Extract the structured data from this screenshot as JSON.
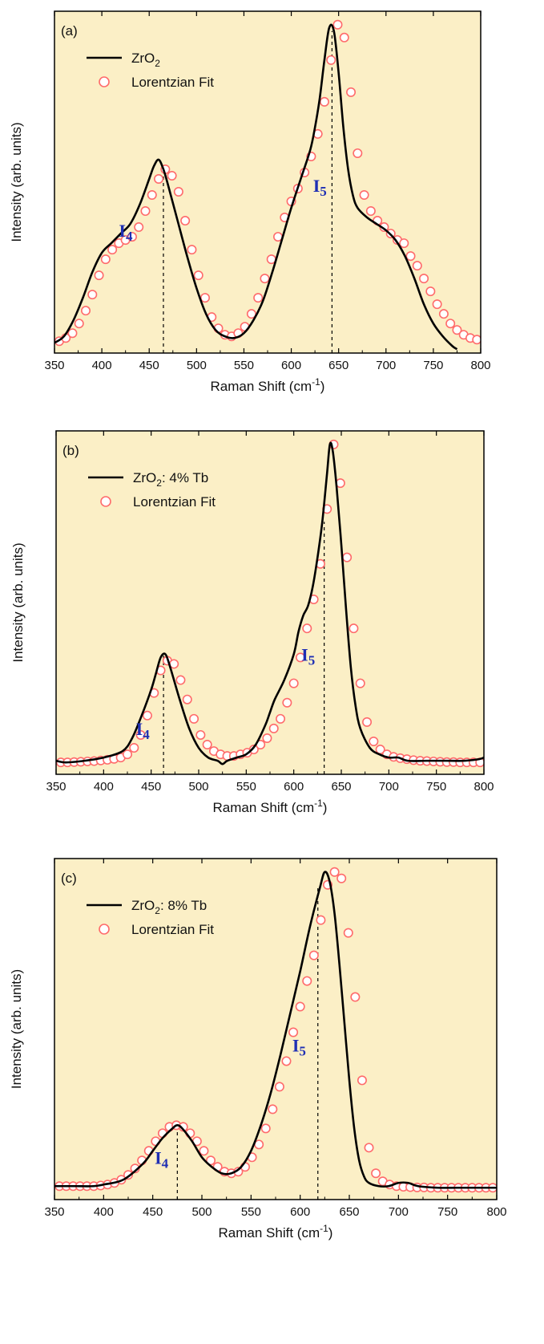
{
  "chart_data": [
    {
      "type": "line",
      "panel_label": "(a)",
      "xlabel_main": "Raman Shift (cm",
      "xlabel_sup": "-1",
      "xlabel_tail": ")",
      "ylabel": "Intensity (arb. units)",
      "xlim": [
        350,
        800
      ],
      "ylim": [
        0,
        1
      ],
      "y_ticks_shown": false,
      "x_ticks": [
        350,
        400,
        450,
        500,
        550,
        600,
        650,
        700,
        750,
        800
      ],
      "x_tick_labels": [
        "350",
        "400",
        "450",
        "500",
        "550",
        "600",
        "650",
        "700",
        "750",
        "800"
      ],
      "background_color": "#fbefc6",
      "legend_placement": "top-left",
      "legend": [
        {
          "name_main": "ZrO",
          "name_sub": "2",
          "name_tail": "",
          "style": "line",
          "color": "#000000"
        },
        {
          "name_main": "Lorentzian Fit",
          "name_sub": "",
          "name_tail": "",
          "style": "circle",
          "color": "#ff6b6b"
        }
      ],
      "peaks": [
        {
          "label_main": "I",
          "label_sub": "4",
          "x": 465,
          "label_x": 418,
          "label_y": 0.33
        },
        {
          "label_main": "I",
          "label_sub": "5",
          "x": 643,
          "label_x": 623,
          "label_y": 0.47
        }
      ],
      "series": [
        {
          "name": "ZrO2",
          "style": "line",
          "x": [
            350,
            360,
            370,
            380,
            390,
            400,
            410,
            420,
            430,
            440,
            450,
            455,
            460,
            465,
            470,
            480,
            490,
            500,
            510,
            520,
            530,
            540,
            550,
            560,
            570,
            580,
            590,
            600,
            610,
            620,
            625,
            630,
            635,
            640,
            645,
            650,
            655,
            660,
            665,
            670,
            680,
            690,
            700,
            710,
            720,
            730,
            740,
            750,
            760,
            770,
            775
          ],
          "y": [
            0.0,
            0.02,
            0.07,
            0.14,
            0.22,
            0.28,
            0.31,
            0.34,
            0.37,
            0.43,
            0.51,
            0.55,
            0.57,
            0.54,
            0.49,
            0.38,
            0.27,
            0.17,
            0.09,
            0.04,
            0.02,
            0.015,
            0.03,
            0.07,
            0.13,
            0.22,
            0.32,
            0.42,
            0.51,
            0.6,
            0.67,
            0.76,
            0.88,
            0.98,
            0.97,
            0.84,
            0.67,
            0.54,
            0.46,
            0.42,
            0.39,
            0.37,
            0.35,
            0.32,
            0.27,
            0.2,
            0.12,
            0.06,
            0.02,
            -0.01,
            -0.02
          ]
        },
        {
          "name": "Lorentzian Fit",
          "style": "circle",
          "x": [
            355,
            362,
            369,
            376,
            383,
            390,
            397,
            404,
            411,
            418,
            425,
            432,
            439,
            446,
            453,
            460,
            467,
            474,
            481,
            488,
            495,
            502,
            509,
            516,
            523,
            530,
            537,
            544,
            551,
            558,
            565,
            572,
            579,
            586,
            593,
            600,
            607,
            614,
            621,
            628,
            635,
            642,
            649,
            656,
            663,
            670,
            677,
            684,
            691,
            698,
            705,
            712,
            719,
            726,
            733,
            740,
            747,
            754,
            761,
            768,
            775,
            782,
            789,
            796
          ],
          "y": [
            0.005,
            0.015,
            0.03,
            0.06,
            0.1,
            0.15,
            0.21,
            0.26,
            0.29,
            0.31,
            0.32,
            0.33,
            0.36,
            0.41,
            0.46,
            0.51,
            0.54,
            0.52,
            0.47,
            0.38,
            0.29,
            0.21,
            0.14,
            0.08,
            0.045,
            0.025,
            0.02,
            0.03,
            0.05,
            0.09,
            0.14,
            0.2,
            0.26,
            0.33,
            0.39,
            0.44,
            0.48,
            0.53,
            0.58,
            0.65,
            0.75,
            0.88,
            0.99,
            0.95,
            0.78,
            0.59,
            0.46,
            0.41,
            0.38,
            0.36,
            0.34,
            0.32,
            0.31,
            0.27,
            0.24,
            0.2,
            0.16,
            0.12,
            0.09,
            0.06,
            0.04,
            0.025,
            0.015,
            0.01
          ]
        }
      ]
    },
    {
      "type": "line",
      "panel_label": "(b)",
      "xlabel_main": "Raman Shift (cm",
      "xlabel_sup": "-1",
      "xlabel_tail": ")",
      "ylabel": "Intensity (arb. units)",
      "xlim": [
        350,
        800
      ],
      "ylim": [
        0,
        1
      ],
      "y_ticks_shown": false,
      "x_ticks": [
        350,
        400,
        450,
        500,
        550,
        600,
        650,
        700,
        750,
        800
      ],
      "x_tick_labels": [
        "350",
        "400",
        "450",
        "500",
        "550",
        "600",
        "650",
        "700",
        "750",
        "800"
      ],
      "background_color": "#fbefc6",
      "legend_placement": "top-left",
      "legend": [
        {
          "name_main": "ZrO",
          "name_sub": "2",
          "name_tail": ": 4% Tb",
          "style": "line",
          "color": "#000000"
        },
        {
          "name_main": "Lorentzian Fit",
          "name_sub": "",
          "name_tail": "",
          "style": "circle",
          "color": "#ff6b6b"
        }
      ],
      "peaks": [
        {
          "label_main": "I",
          "label_sub": "4",
          "x": 463,
          "label_x": 434,
          "label_y": 0.09
        },
        {
          "label_main": "I",
          "label_sub": "5",
          "x": 632,
          "label_x": 608,
          "label_y": 0.32
        }
      ],
      "series": [
        {
          "name": "ZrO2: 4% Tb",
          "style": "line",
          "x": [
            350,
            360,
            380,
            400,
            420,
            430,
            440,
            450,
            455,
            460,
            465,
            470,
            480,
            490,
            500,
            510,
            520,
            525,
            530,
            540,
            550,
            560,
            570,
            575,
            580,
            590,
            600,
            605,
            610,
            615,
            620,
            625,
            630,
            635,
            638,
            641,
            645,
            650,
            655,
            660,
            665,
            670,
            680,
            690,
            700,
            710,
            720,
            740,
            760,
            780,
            795,
            800
          ],
          "y": [
            0.01,
            0.005,
            0.01,
            0.02,
            0.04,
            0.08,
            0.15,
            0.23,
            0.28,
            0.33,
            0.34,
            0.3,
            0.2,
            0.11,
            0.05,
            0.02,
            0.01,
            0.0,
            0.01,
            0.02,
            0.03,
            0.06,
            0.12,
            0.16,
            0.2,
            0.26,
            0.34,
            0.41,
            0.46,
            0.49,
            0.55,
            0.64,
            0.75,
            0.9,
            0.99,
            0.97,
            0.86,
            0.68,
            0.48,
            0.3,
            0.18,
            0.11,
            0.05,
            0.03,
            0.02,
            0.02,
            0.01,
            0.01,
            0.01,
            0.01,
            0.015,
            0.02
          ]
        },
        {
          "name": "Lorentzian Fit",
          "style": "circle",
          "x": [
            355,
            362,
            369,
            376,
            383,
            390,
            397,
            404,
            411,
            418,
            425,
            432,
            439,
            446,
            453,
            460,
            467,
            474,
            481,
            488,
            495,
            502,
            509,
            516,
            523,
            530,
            537,
            544,
            551,
            558,
            565,
            572,
            579,
            586,
            593,
            600,
            607,
            614,
            621,
            628,
            635,
            642,
            649,
            656,
            663,
            670,
            677,
            684,
            691,
            698,
            705,
            712,
            719,
            726,
            733,
            740,
            747,
            754,
            761,
            768,
            775,
            782,
            789,
            796
          ],
          "y": [
            0.005,
            0.005,
            0.006,
            0.007,
            0.008,
            0.009,
            0.011,
            0.013,
            0.016,
            0.02,
            0.03,
            0.05,
            0.09,
            0.15,
            0.22,
            0.29,
            0.32,
            0.31,
            0.26,
            0.2,
            0.14,
            0.09,
            0.06,
            0.04,
            0.03,
            0.025,
            0.025,
            0.03,
            0.035,
            0.045,
            0.06,
            0.08,
            0.11,
            0.14,
            0.19,
            0.25,
            0.33,
            0.42,
            0.51,
            0.62,
            0.79,
            0.99,
            0.87,
            0.64,
            0.42,
            0.25,
            0.13,
            0.07,
            0.045,
            0.03,
            0.022,
            0.018,
            0.015,
            0.012,
            0.01,
            0.009,
            0.008,
            0.007,
            0.006,
            0.006,
            0.005,
            0.005,
            0.005,
            0.005
          ]
        }
      ]
    },
    {
      "type": "line",
      "panel_label": "(c)",
      "xlabel_main": "Raman Shift (cm",
      "xlabel_sup": "-1",
      "xlabel_tail": ")",
      "ylabel": "Intensity (arb. units)",
      "xlim": [
        350,
        800
      ],
      "ylim": [
        0,
        1
      ],
      "y_ticks_shown": false,
      "x_ticks": [
        350,
        400,
        450,
        500,
        550,
        600,
        650,
        700,
        750,
        800
      ],
      "x_tick_labels": [
        "350",
        "400",
        "450",
        "500",
        "550",
        "600",
        "650",
        "700",
        "750",
        "800"
      ],
      "background_color": "#fbefc6",
      "legend_placement": "top-left",
      "legend": [
        {
          "name_main": "ZrO",
          "name_sub": "2",
          "name_tail": ": 8% Tb",
          "style": "line",
          "color": "#000000"
        },
        {
          "name_main": "Lorentzian Fit",
          "name_sub": "",
          "name_tail": "",
          "style": "circle",
          "color": "#ff6b6b"
        }
      ],
      "peaks": [
        {
          "label_main": "I",
          "label_sub": "4",
          "x": 475,
          "label_x": 452,
          "label_y": 0.08
        },
        {
          "label_main": "I",
          "label_sub": "5",
          "x": 618,
          "label_x": 592,
          "label_y": 0.43
        }
      ],
      "series": [
        {
          "name": "ZrO2: 8% Tb",
          "style": "line",
          "x": [
            350,
            370,
            390,
            400,
            420,
            440,
            450,
            460,
            470,
            475,
            480,
            490,
            500,
            510,
            520,
            530,
            540,
            550,
            560,
            570,
            580,
            590,
            600,
            610,
            620,
            625,
            630,
            635,
            640,
            645,
            650,
            655,
            660,
            665,
            670,
            680,
            690,
            700,
            710,
            720,
            740,
            760,
            780,
            800
          ],
          "y": [
            0.01,
            0.01,
            0.01,
            0.015,
            0.03,
            0.08,
            0.12,
            0.16,
            0.19,
            0.2,
            0.19,
            0.15,
            0.1,
            0.07,
            0.05,
            0.05,
            0.07,
            0.12,
            0.2,
            0.3,
            0.42,
            0.55,
            0.68,
            0.82,
            0.94,
            0.99,
            0.96,
            0.86,
            0.7,
            0.52,
            0.34,
            0.19,
            0.09,
            0.04,
            0.02,
            0.01,
            0.01,
            0.02,
            0.02,
            0.01,
            0.005,
            0.005,
            0.005,
            0.005
          ]
        },
        {
          "name": "Lorentzian Fit",
          "style": "circle",
          "x": [
            355,
            362,
            369,
            376,
            383,
            390,
            397,
            404,
            411,
            418,
            425,
            432,
            439,
            446,
            453,
            460,
            467,
            474,
            481,
            488,
            495,
            502,
            509,
            516,
            523,
            530,
            537,
            544,
            551,
            558,
            565,
            572,
            579,
            586,
            593,
            600,
            607,
            614,
            621,
            628,
            635,
            642,
            649,
            656,
            663,
            670,
            677,
            684,
            691,
            698,
            705,
            712,
            719,
            726,
            733,
            740,
            747,
            754,
            761,
            768,
            775,
            782,
            789,
            796
          ],
          "y": [
            0.01,
            0.01,
            0.01,
            0.01,
            0.01,
            0.01,
            0.012,
            0.015,
            0.02,
            0.03,
            0.045,
            0.065,
            0.09,
            0.12,
            0.15,
            0.175,
            0.195,
            0.2,
            0.195,
            0.175,
            0.15,
            0.12,
            0.09,
            0.07,
            0.055,
            0.05,
            0.055,
            0.07,
            0.1,
            0.14,
            0.19,
            0.25,
            0.32,
            0.4,
            0.49,
            0.57,
            0.65,
            0.73,
            0.84,
            0.95,
            0.99,
            0.97,
            0.8,
            0.6,
            0.34,
            0.13,
            0.05,
            0.025,
            0.015,
            0.01,
            0.008,
            0.007,
            0.006,
            0.006,
            0.005,
            0.005,
            0.005,
            0.005,
            0.005,
            0.005,
            0.005,
            0.005,
            0.005,
            0.005
          ]
        }
      ]
    }
  ]
}
